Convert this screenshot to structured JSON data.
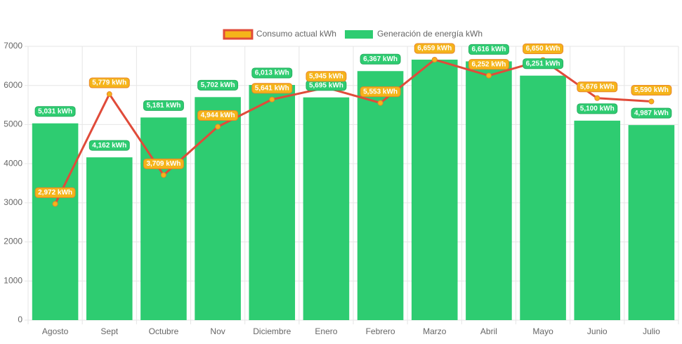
{
  "chart_data": {
    "type": "bar",
    "categories": [
      "Agosto",
      "Sept",
      "Octubre",
      "Nov",
      "Diciembre",
      "Enero",
      "Febrero",
      "Marzo",
      "Abril",
      "Mayo",
      "Junio",
      "Julio"
    ],
    "series": [
      {
        "name": "Consumo actual kWh",
        "type": "line",
        "color": "#e04b3a",
        "point_color": "#f5b41a",
        "values": [
          2972,
          5779,
          3709,
          4944,
          5641,
          5945,
          5553,
          6659,
          6252,
          6650,
          5676,
          5590
        ],
        "value_labels": [
          "2,972 kWh",
          "5,779 kWh",
          "3,709 kWh",
          "4,944 kWh",
          "5,641 kWh",
          "5,945 kWh",
          "5,553 kWh",
          "6,659 kWh",
          "6,252 kWh",
          "6,650 kWh",
          "5,676 kWh",
          "5,590 kWh"
        ]
      },
      {
        "name": "Generación de energía kWh",
        "type": "bar",
        "color": "#2ecc71",
        "values": [
          5031,
          4162,
          5181,
          5702,
          6013,
          5695,
          6367,
          6660,
          6616,
          6251,
          5100,
          4987
        ],
        "value_labels": [
          "5,031 kWh",
          "4,162 kWh",
          "5,181 kWh",
          "5,702 kWh",
          "6,013 kWh",
          "5,695 kWh",
          "6,367 kWh",
          null,
          "6,616 kWh",
          "6,251 kWh",
          "5,100 kWh",
          "4,987 kWh"
        ]
      }
    ],
    "ylim": [
      0,
      7000
    ],
    "yticks": [
      0,
      1000,
      2000,
      3000,
      4000,
      5000,
      6000,
      7000
    ],
    "grid": true,
    "legend": "top"
  }
}
